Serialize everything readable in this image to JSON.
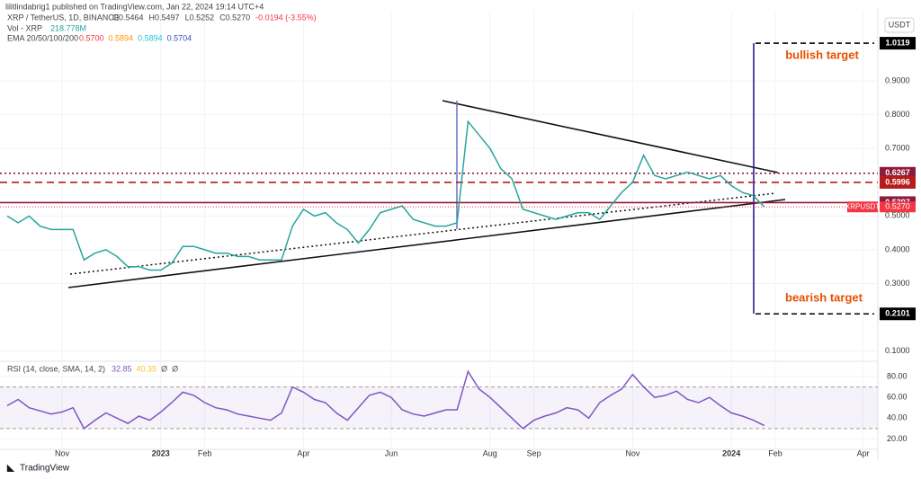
{
  "header": {
    "publisher": "lilitlindabrig1 published on TradingView.com, Jan 22, 2024 19:14 UTC+4",
    "symbol": "XRP / TetherUS, 1D, BINANCE",
    "ohlc": [
      "O0.5464",
      "H0.5497",
      "L0.5252",
      "C0.5270",
      "-0.0194 (-3.55%)"
    ],
    "volume_label": "Vol - XRP",
    "volume_value": "218.778M",
    "ema_label": "EMA 20/50/100/200",
    "ema_values": [
      {
        "text": "0.5700",
        "color": "#f23645"
      },
      {
        "text": "0.5894",
        "color": "#ff9800"
      },
      {
        "text": "0.5894",
        "color": "#26c6da"
      },
      {
        "text": "0.5704",
        "color": "#3f51b5"
      }
    ],
    "currency": "USDT",
    "logo": "TradingView"
  },
  "chart_data": [
    {
      "type": "line",
      "categories": [
        null,
        null,
        null,
        null,
        null,
        "Nov",
        null,
        null,
        null,
        null,
        null,
        null,
        null,
        null,
        "2023",
        null,
        null,
        null,
        "Feb",
        null,
        null,
        null,
        null,
        null,
        null,
        null,
        null,
        "Apr",
        null,
        null,
        null,
        null,
        null,
        null,
        null,
        "Jun",
        null,
        null,
        null,
        null,
        null,
        null,
        null,
        null,
        "Aug",
        null,
        null,
        null,
        "Sep",
        null,
        null,
        null,
        null,
        null,
        null,
        null,
        null,
        "Nov",
        null,
        null,
        null,
        null,
        null,
        null,
        null,
        null,
        "2024",
        null,
        null,
        null,
        "Feb",
        null,
        null,
        null,
        null,
        null,
        null,
        null,
        "Apr",
        null
      ],
      "series": [
        {
          "name": "XRPUSDT",
          "color": "#26a69a",
          "values": [
            0.5,
            0.48,
            0.5,
            0.47,
            0.46,
            0.46,
            0.46,
            0.37,
            0.39,
            0.4,
            0.38,
            0.35,
            0.35,
            0.34,
            0.34,
            0.36,
            0.41,
            0.41,
            0.4,
            0.39,
            0.39,
            0.38,
            0.38,
            0.37,
            0.37,
            0.37,
            0.47,
            0.52,
            0.5,
            0.51,
            0.48,
            0.46,
            0.42,
            0.46,
            0.51,
            0.52,
            0.53,
            0.49,
            0.48,
            0.47,
            0.47,
            0.48,
            0.78,
            0.74,
            0.7,
            0.64,
            0.61,
            0.52,
            0.51,
            0.5,
            0.49,
            0.5,
            0.51,
            0.51,
            0.49,
            0.53,
            0.57,
            0.6,
            0.68,
            0.62,
            0.61,
            0.62,
            0.63,
            0.62,
            0.61,
            0.62,
            0.59,
            0.57,
            0.56,
            0.527,
            null,
            null,
            null,
            null,
            null,
            null,
            null,
            null,
            null,
            null
          ]
        }
      ],
      "current": {
        "value": 0.527,
        "label": "0.5270"
      },
      "levels": [
        {
          "value": 1.0119,
          "style": "target",
          "color": "#000000"
        },
        {
          "value": 0.6267,
          "style": "dotted",
          "color": "#8e1b3c"
        },
        {
          "value": 0.5996,
          "style": "dashed",
          "color": "#b71c1c"
        },
        {
          "value": 0.5397,
          "style": "solid",
          "color": "#8e1b3c"
        },
        {
          "value": 0.2101,
          "style": "target",
          "color": "#000000"
        }
      ],
      "annotations": [
        {
          "text": "bullish target",
          "color": "#e65100"
        },
        {
          "text": "bearish target",
          "color": "#e65100"
        }
      ],
      "ylim": [
        0.075,
        1.1
      ],
      "yticks": [
        {
          "value": 0.9,
          "label": "0.9000"
        },
        {
          "value": 0.8,
          "label": "0.8000"
        },
        {
          "value": 0.7,
          "label": "0.7000"
        },
        {
          "value": 0.5,
          "label": "0.5000"
        },
        {
          "value": 0.4,
          "label": "0.4000"
        },
        {
          "value": 0.3,
          "label": "0.3000"
        },
        {
          "value": 0.1,
          "label": "0.1000"
        }
      ],
      "grid": true
    },
    {
      "type": "line",
      "title": "RSI (14, close, SMA, 14, 2)",
      "legend_values": [
        {
          "text": "32.85",
          "color": "#7e57c2"
        },
        {
          "text": "40.35",
          "color": "#fbc02d"
        },
        {
          "text": "Ø",
          "color": "#555555"
        },
        {
          "text": "Ø",
          "color": "#555555"
        }
      ],
      "series": [
        {
          "name": "RSI",
          "color": "#7e57c2",
          "values": [
            52,
            58,
            50,
            47,
            44,
            46,
            50,
            30,
            38,
            45,
            40,
            35,
            42,
            38,
            46,
            55,
            65,
            62,
            55,
            50,
            48,
            44,
            42,
            40,
            38,
            45,
            70,
            65,
            58,
            55,
            45,
            38,
            50,
            62,
            65,
            60,
            48,
            44,
            42,
            45,
            48,
            48,
            85,
            68,
            60,
            50,
            40,
            30,
            38,
            42,
            45,
            50,
            48,
            40,
            55,
            62,
            68,
            82,
            70,
            60,
            62,
            66,
            58,
            55,
            60,
            52,
            45,
            42,
            38,
            32.85
          ]
        }
      ],
      "band": [
        30,
        70
      ],
      "ylim": [
        10,
        93
      ],
      "yticks": [
        {
          "value": 80,
          "label": "80.00"
        },
        {
          "value": 60,
          "label": "60.00"
        },
        {
          "value": 40,
          "label": "40.00"
        },
        {
          "value": 20,
          "label": "20.00"
        }
      ]
    }
  ]
}
